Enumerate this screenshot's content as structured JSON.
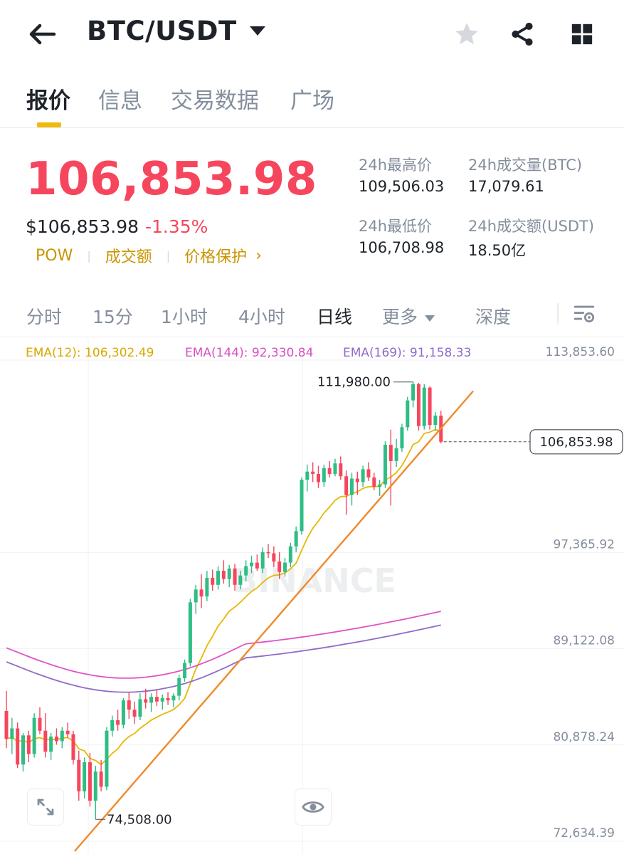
{
  "header": {
    "back_icon": "arrow-left-icon",
    "pair": "BTC/USDT",
    "icons": [
      "star-icon",
      "share-icon",
      "grid-icon"
    ]
  },
  "tabs": [
    {
      "label": "报价",
      "active": true
    },
    {
      "label": "信息",
      "active": false
    },
    {
      "label": "交易数据",
      "active": false
    },
    {
      "label": "广场",
      "active": false
    }
  ],
  "price": {
    "last": "106,853.98",
    "usd": "$106,853.98",
    "change": "-1.35%",
    "links": [
      "POW",
      "成交额",
      "价格保护"
    ]
  },
  "stats": {
    "high_label": "24h最高价",
    "high_value": "109,506.03",
    "vol_btc_label": "24h成交量(BTC)",
    "vol_btc_value": "17,079.61",
    "low_label": "24h最低价",
    "low_value": "106,708.98",
    "vol_usdt_label": "24h成交额(USDT)",
    "vol_usdt_value": "18.50亿"
  },
  "intervals": [
    {
      "label": "分时",
      "active": false
    },
    {
      "label": "15分",
      "active": false
    },
    {
      "label": "1小时",
      "active": false
    },
    {
      "label": "4小时",
      "active": false
    },
    {
      "label": "日线",
      "active": true
    },
    {
      "label": "更多",
      "active": false
    },
    {
      "label": "深度",
      "active": false
    }
  ],
  "ema": {
    "ema12": "EMA(12): 106,302.49",
    "ema144": "EMA(144): 92,330.84",
    "ema169": "EMA(169): 91,158.33"
  },
  "colors": {
    "up": "#2ebd85",
    "down": "#f6465d",
    "accent": "#f0b90b",
    "ema12": "#e6b800",
    "ema144": "#e052c6",
    "ema169": "#8e6bc9",
    "trendline": "#f08a2a"
  },
  "chart_data": {
    "type": "candlestick",
    "interval": "日线",
    "y_tick_labels": [
      "113,853.60",
      "97,365.92",
      "89,122.08",
      "80,878.24",
      "72,634.39"
    ],
    "ylim": [
      72634.39,
      113853.6
    ],
    "annotations": {
      "max": "111,980.00",
      "min": "74,508.00",
      "last_price": "106,853.98"
    },
    "watermark": "BINANCE",
    "candles_ohlc": [
      [
        83800,
        85500,
        80600,
        81400
      ],
      [
        81400,
        83200,
        80100,
        82300
      ],
      [
        82300,
        82800,
        78900,
        79200
      ],
      [
        79200,
        81900,
        78600,
        81700
      ],
      [
        81700,
        82100,
        79400,
        80100
      ],
      [
        80100,
        83600,
        79800,
        83200
      ],
      [
        83200,
        84100,
        81800,
        82100
      ],
      [
        82100,
        83600,
        79800,
        80300
      ],
      [
        80300,
        81900,
        79600,
        81600
      ],
      [
        81600,
        82300,
        80900,
        81200
      ],
      [
        81200,
        82400,
        80600,
        82100
      ],
      [
        82100,
        82800,
        81500,
        81800
      ],
      [
        81800,
        82100,
        79200,
        79600
      ],
      [
        79600,
        80400,
        76100,
        76900
      ],
      [
        76900,
        79800,
        76300,
        79400
      ],
      [
        79400,
        80200,
        75600,
        76100
      ],
      [
        76100,
        79100,
        74508,
        78600
      ],
      [
        78600,
        79600,
        76900,
        77300
      ],
      [
        77300,
        82400,
        77000,
        82100
      ],
      [
        82100,
        83400,
        81600,
        83000
      ],
      [
        83000,
        83900,
        82100,
        82600
      ],
      [
        82600,
        84900,
        82300,
        84700
      ],
      [
        84700,
        85400,
        83100,
        83900
      ],
      [
        83900,
        84600,
        82700,
        83300
      ],
      [
        83300,
        85300,
        83000,
        84800
      ],
      [
        84800,
        85700,
        84000,
        84500
      ],
      [
        84500,
        85300,
        83700,
        85000
      ],
      [
        85000,
        85600,
        84200,
        84600
      ],
      [
        84600,
        85200,
        83900,
        84900
      ],
      [
        84900,
        85400,
        84300,
        84700
      ],
      [
        84700,
        85300,
        84100,
        85100
      ],
      [
        85100,
        86900,
        84700,
        86600
      ],
      [
        86600,
        88200,
        86300,
        87900
      ],
      [
        87900,
        93400,
        87600,
        93100
      ],
      [
        93100,
        94600,
        92100,
        94200
      ],
      [
        94200,
        95500,
        92600,
        93600
      ],
      [
        93600,
        95800,
        93200,
        95200
      ],
      [
        95200,
        95900,
        94100,
        94600
      ],
      [
        94600,
        96200,
        94200,
        95800
      ],
      [
        95800,
        96700,
        94700,
        95100
      ],
      [
        95100,
        96300,
        94400,
        96000
      ],
      [
        96000,
        96400,
        94100,
        94600
      ],
      [
        94600,
        95800,
        94200,
        95400
      ],
      [
        95400,
        96700,
        94900,
        96200
      ],
      [
        96200,
        97100,
        95600,
        96500
      ],
      [
        96500,
        97200,
        95800,
        96000
      ],
      [
        96000,
        97800,
        95600,
        97400
      ],
      [
        97400,
        98100,
        96900,
        97300
      ],
      [
        97300,
        97900,
        96100,
        96600
      ],
      [
        96600,
        97400,
        95100,
        95700
      ],
      [
        95700,
        96900,
        95300,
        96500
      ],
      [
        96500,
        98200,
        96100,
        97900
      ],
      [
        97900,
        99600,
        97400,
        99200
      ],
      [
        99200,
        103800,
        98900,
        103600
      ],
      [
        103600,
        104900,
        102600,
        104300
      ],
      [
        104300,
        105100,
        103400,
        104100
      ],
      [
        104100,
        104800,
        102900,
        103400
      ],
      [
        103400,
        104900,
        103000,
        104600
      ],
      [
        104600,
        105200,
        103800,
        104100
      ],
      [
        104100,
        105400,
        103900,
        105000
      ],
      [
        105000,
        105600,
        103600,
        103900
      ],
      [
        103900,
        104400,
        100600,
        102300
      ],
      [
        102300,
        104200,
        101400,
        103700
      ],
      [
        103700,
        104300,
        102300,
        103400
      ],
      [
        103400,
        104800,
        103000,
        104500
      ],
      [
        104500,
        105100,
        103500,
        103800
      ],
      [
        103800,
        104200,
        102700,
        103000
      ],
      [
        103000,
        103600,
        102200,
        103200
      ],
      [
        103200,
        106900,
        102900,
        106600
      ],
      [
        106600,
        107900,
        101400,
        105200
      ],
      [
        105200,
        107100,
        104700,
        106300
      ],
      [
        106300,
        108400,
        106000,
        108100
      ],
      [
        108100,
        110700,
        107800,
        110400
      ],
      [
        110400,
        111980,
        109800,
        111800
      ],
      [
        111800,
        111900,
        107800,
        108200
      ],
      [
        108200,
        111800,
        107900,
        111500
      ],
      [
        111500,
        111600,
        107900,
        108300
      ],
      [
        108300,
        109400,
        107800,
        109100
      ],
      [
        109100,
        109506,
        106708,
        106854
      ]
    ],
    "series": [
      {
        "name": "EMA(12)",
        "last": 106302.49
      },
      {
        "name": "EMA(144)",
        "last": 92330.84
      },
      {
        "name": "EMA(169)",
        "last": 91158.33
      }
    ],
    "trendline": {
      "from_price": 72634.39,
      "to_price": 111200
    }
  }
}
